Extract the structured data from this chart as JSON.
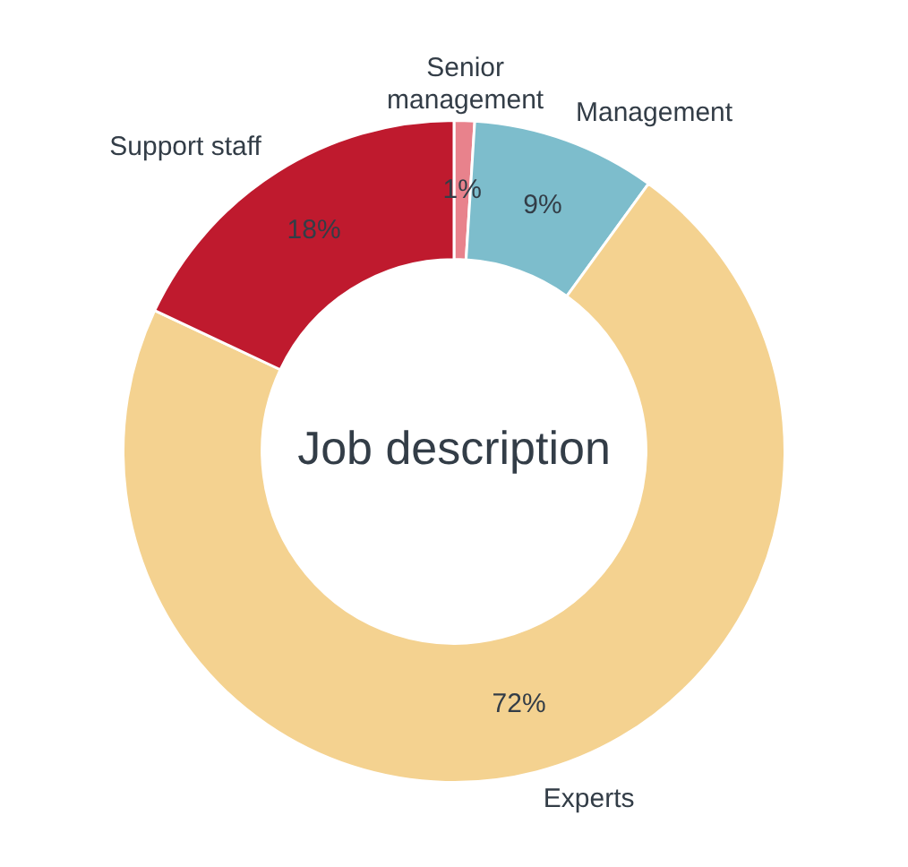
{
  "chart_data": {
    "type": "donut",
    "title": "Job description",
    "categories": [
      "Senior management",
      "Management",
      "Experts",
      "Support staff"
    ],
    "values": [
      1,
      9,
      72,
      18
    ],
    "value_labels": [
      "1%",
      "9%",
      "72%",
      "18%"
    ],
    "colors": [
      "#e8828c",
      "#7dbdcc",
      "#f4d290",
      "#bf1a2e"
    ],
    "legend": false
  }
}
